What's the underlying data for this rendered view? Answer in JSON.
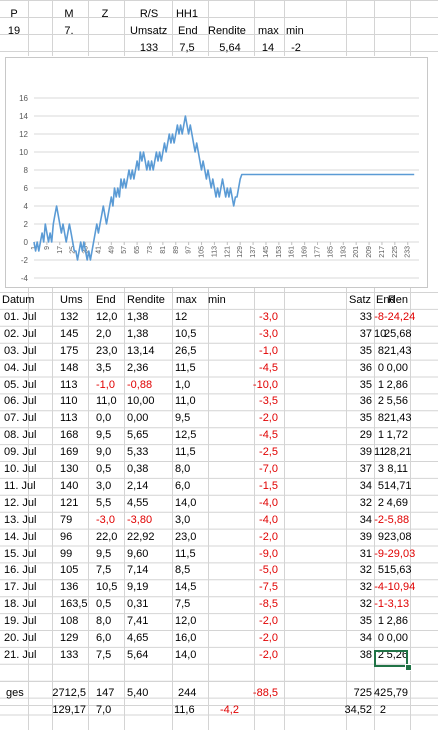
{
  "summary_headers": {
    "row1": [
      "P",
      "M",
      "Z",
      "R/S",
      "HH1"
    ],
    "row2": [
      "19",
      "7.",
      "",
      "Umsatz",
      "End",
      "Rendite",
      "max",
      "min"
    ],
    "row3": [
      "",
      "",
      "",
      "133",
      "7,5",
      "5,64",
      "14",
      "-2"
    ]
  },
  "colors": {
    "line": "#5b9bd5",
    "negative": "#e00000",
    "grid": "#d4d4d4",
    "selection": "#217346"
  },
  "chart_data": {
    "type": "line",
    "title": "",
    "xlabel": "",
    "ylabel": "",
    "ylim": [
      -4,
      16
    ],
    "yticks": [
      "-4",
      "-2",
      "0",
      "2",
      "4",
      "6",
      "8",
      "10",
      "12",
      "14",
      "16"
    ],
    "xticks": [
      "1",
      "9",
      "17",
      "25",
      "33",
      "41",
      "49",
      "57",
      "65",
      "73",
      "81",
      "89",
      "97",
      "105",
      "113",
      "121",
      "129",
      "137",
      "145",
      "153",
      "161",
      "169",
      "177",
      "185",
      "193",
      "201",
      "209",
      "217",
      "225",
      "233"
    ],
    "grid": true,
    "legend": "none",
    "series": [
      {
        "values": [
          0,
          -1,
          0,
          -1,
          0,
          1,
          0,
          2,
          1,
          0,
          1,
          0,
          2,
          3,
          4,
          3,
          2,
          1,
          2,
          1,
          0,
          1,
          2,
          1,
          0,
          -1,
          -1,
          -2,
          -1,
          0,
          -1,
          0,
          -1,
          -2,
          -1,
          -2,
          -1,
          0,
          1,
          2,
          1,
          2,
          3,
          4,
          3,
          2,
          3,
          4,
          5,
          4,
          6,
          5,
          6,
          5,
          7,
          6,
          7,
          6,
          7,
          8,
          7,
          8,
          7,
          8,
          9,
          8,
          10,
          9,
          10,
          9,
          8,
          9,
          8,
          9,
          8,
          9,
          10,
          9,
          10,
          9,
          10,
          11,
          10,
          11,
          12,
          11,
          12,
          11,
          12,
          13,
          12,
          13,
          12,
          13,
          14,
          13,
          12,
          13,
          12,
          11,
          10,
          11,
          10,
          9,
          8,
          9,
          8,
          7,
          8,
          7,
          6,
          7,
          6,
          5,
          6,
          5,
          6,
          7,
          6,
          5,
          6,
          5,
          6,
          5,
          4,
          5,
          5,
          6,
          7,
          7.5,
          7.5,
          7.5,
          7.5,
          7.5,
          7.5,
          7.5,
          7.5,
          7.5,
          7.5,
          7.5,
          7.5,
          7.5,
          7.5,
          7.5,
          7.5,
          7.5,
          7.5,
          7.5,
          7.5,
          7.5,
          7.5,
          7.5,
          7.5,
          7.5,
          7.5,
          7.5,
          7.5,
          7.5,
          7.5,
          7.5,
          7.5,
          7.5,
          7.5,
          7.5,
          7.5,
          7.5,
          7.5,
          7.5,
          7.5,
          7.5,
          7.5,
          7.5,
          7.5,
          7.5,
          7.5,
          7.5,
          7.5,
          7.5,
          7.5,
          7.5,
          7.5,
          7.5,
          7.5,
          7.5,
          7.5,
          7.5,
          7.5,
          7.5,
          7.5,
          7.5,
          7.5,
          7.5,
          7.5,
          7.5,
          7.5,
          7.5,
          7.5,
          7.5,
          7.5,
          7.5,
          7.5,
          7.5,
          7.5,
          7.5,
          7.5,
          7.5,
          7.5,
          7.5,
          7.5,
          7.5,
          7.5,
          7.5,
          7.5,
          7.5,
          7.5,
          7.5,
          7.5,
          7.5,
          7.5,
          7.5,
          7.5,
          7.5,
          7.5,
          7.5,
          7.5,
          7.5,
          7.5,
          7.5,
          7.5,
          7.5,
          7.5,
          7.5,
          7.5,
          7.5,
          7.5,
          7.5,
          7.5
        ]
      }
    ]
  },
  "table_left": {
    "headers": [
      "Datum",
      "Ums",
      "End",
      "Rendite",
      "max",
      "min"
    ],
    "rows": [
      [
        "01. Jul",
        "132",
        "12,0",
        "1,38",
        "12",
        "-3,0"
      ],
      [
        "02. Jul",
        "145",
        "2,0",
        "1,38",
        "10,5",
        "-3,0"
      ],
      [
        "03. Jul",
        "175",
        "23,0",
        "13,14",
        "26,5",
        "-1,0"
      ],
      [
        "04. Jul",
        "148",
        "3,5",
        "2,36",
        "11,5",
        "-4,5"
      ],
      [
        "05. Jul",
        "113",
        "-1,0",
        "-0,88",
        "1,0",
        "-10,0"
      ],
      [
        "06. Jul",
        "110",
        "11,0",
        "10,00",
        "11,0",
        "-3,5"
      ],
      [
        "07. Jul",
        "113",
        "0,0",
        "0,00",
        "9,5",
        "-2,0"
      ],
      [
        "08. Jul",
        "168",
        "9,5",
        "5,65",
        "12,5",
        "-4,5"
      ],
      [
        "09. Jul",
        "169",
        "9,0",
        "5,33",
        "11,5",
        "-2,5"
      ],
      [
        "10. Jul",
        "130",
        "0,5",
        "0,38",
        "8,0",
        "-7,0"
      ],
      [
        "11. Jul",
        "140",
        "3,0",
        "2,14",
        "6,0",
        "-1,5"
      ],
      [
        "12. Jul",
        "121",
        "5,5",
        "4,55",
        "14,0",
        "-4,0"
      ],
      [
        "13. Jul",
        "79",
        "-3,0",
        "-3,80",
        "3,0",
        "-4,0"
      ],
      [
        "14. Jul",
        "96",
        "22,0",
        "22,92",
        "23,0",
        "-2,0"
      ],
      [
        "15. Jul",
        "99",
        "9,5",
        "9,60",
        "11,5",
        "-9,0"
      ],
      [
        "16. Jul",
        "105",
        "7,5",
        "7,14",
        "8,5",
        "-5,0"
      ],
      [
        "17. Jul",
        "136",
        "10,5",
        "9,19",
        "14,5",
        "-7,5"
      ],
      [
        "18. Jul",
        "163,5",
        "0,5",
        "0,31",
        "7,5",
        "-8,5"
      ],
      [
        "19. Jul",
        "108",
        "8,0",
        "7,41",
        "12,0",
        "-2,0"
      ],
      [
        "20. Jul",
        "129",
        "6,0",
        "4,65",
        "16,0",
        "-2,0"
      ],
      [
        "21. Jul",
        "133",
        "7,5",
        "5,64",
        "14,0",
        "-2,0"
      ]
    ]
  },
  "table_right": {
    "headers": [
      "Satz",
      "End",
      "Ren"
    ],
    "rows": [
      [
        "33",
        "-8",
        "-24,24"
      ],
      [
        "37",
        "10",
        "25,68"
      ],
      [
        "35",
        "8",
        "21,43"
      ],
      [
        "36",
        "0",
        "0,00"
      ],
      [
        "35",
        "1",
        "2,86"
      ],
      [
        "36",
        "2",
        "5,56"
      ],
      [
        "35",
        "8",
        "21,43"
      ],
      [
        "29",
        "1",
        "1,72"
      ],
      [
        "39",
        "11",
        "28,21"
      ],
      [
        "37",
        "3",
        "8,11"
      ],
      [
        "34",
        "5",
        "14,71"
      ],
      [
        "32",
        "2",
        "4,69"
      ],
      [
        "34",
        "-2",
        "-5,88"
      ],
      [
        "39",
        "9",
        "23,08"
      ],
      [
        "31",
        "-9",
        "-29,03"
      ],
      [
        "32",
        "5",
        "15,63"
      ],
      [
        "32",
        "-4",
        "-10,94"
      ],
      [
        "32",
        "-1",
        "-3,13"
      ],
      [
        "35",
        "1",
        "2,86"
      ],
      [
        "34",
        "0",
        "0,00"
      ],
      [
        "38",
        "2",
        "5,26"
      ]
    ]
  },
  "totals": {
    "row1": [
      "ges",
      "2712,5",
      "147",
      "5,40",
      "244",
      "-88,5",
      "725",
      "42",
      "5,79"
    ],
    "row2": [
      "",
      "129,17",
      "7,0",
      "",
      "11,6",
      "-4,2",
      "34,52",
      "2",
      ""
    ]
  }
}
